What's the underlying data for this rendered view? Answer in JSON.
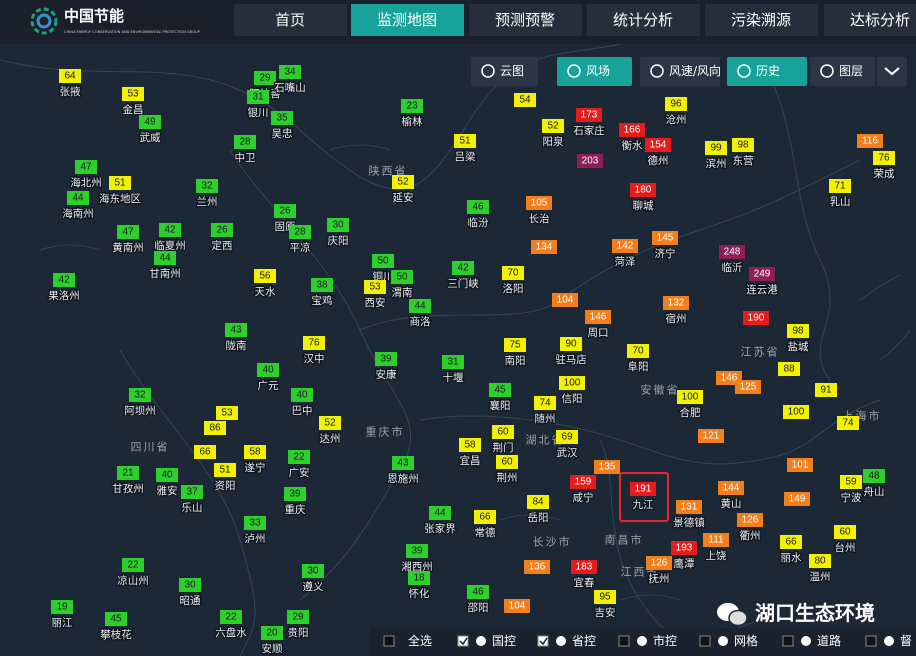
{
  "header": {
    "logo": "中国节能",
    "logo_sub": "CHINA ENERGY CONSERVATION AND ENVIRONMENTAL PROTECTION GROUP",
    "nav": [
      "首页",
      "监测地图",
      "预测预警",
      "统计分析",
      "污染溯源",
      "达标分析"
    ]
  },
  "toolbar": [
    "云图",
    "风场",
    "风速/风向",
    "历史",
    "图层"
  ],
  "map": {
    "region_labels": [
      "陕西省",
      "四川省",
      "重庆市",
      "湖北省",
      "江西省",
      "安徽省",
      "江苏省",
      "上海市",
      "长沙市",
      "南昌市"
    ],
    "stations": [
      {
        "aqi": 64,
        "name": "张掖"
      },
      {
        "aqi": 53,
        "name": "金昌"
      },
      {
        "aqi": 49,
        "name": "武威"
      },
      {
        "aqi": 29,
        "name": "阿拉善"
      },
      {
        "aqi": 34,
        "name": "石嘴山"
      },
      {
        "aqi": 31,
        "name": "银川"
      },
      {
        "aqi": 35,
        "name": "吴忠"
      },
      {
        "aqi": 28,
        "name": "中卫"
      },
      {
        "aqi": 47,
        "name": "海北州"
      },
      {
        "aqi": 51,
        "name": "海东地区"
      },
      {
        "aqi": 44,
        "name": "海南州"
      },
      {
        "aqi": 32,
        "name": "兰州"
      },
      {
        "aqi": 47,
        "name": "黄南州"
      },
      {
        "aqi": 42,
        "name": "临夏州"
      },
      {
        "aqi": 26,
        "name": "定西"
      },
      {
        "aqi": 44,
        "name": "甘南州"
      },
      {
        "aqi": 42,
        "name": "果洛州"
      },
      {
        "aqi": 26,
        "name": "固原"
      },
      {
        "aqi": 28,
        "name": "平凉"
      },
      {
        "aqi": 30,
        "name": "庆阳"
      },
      {
        "aqi": 56,
        "name": "天水"
      },
      {
        "aqi": 38,
        "name": "宝鸡"
      },
      {
        "aqi": 43,
        "name": "陇南"
      },
      {
        "aqi": 76,
        "name": "汉中"
      },
      {
        "aqi": 40,
        "name": "广元"
      },
      {
        "aqi": 40,
        "name": "巴中"
      },
      {
        "aqi": 52,
        "name": "达州"
      },
      {
        "aqi": 32,
        "name": "阿坝州"
      },
      {
        "aqi": 53
      },
      {
        "aqi": 86
      },
      {
        "aqi": 66
      },
      {
        "aqi": 58,
        "name": "遂宁"
      },
      {
        "aqi": 22,
        "name": "广安"
      },
      {
        "aqi": 21,
        "name": "甘孜州"
      },
      {
        "aqi": 40,
        "name": "雅安"
      },
      {
        "aqi": 51,
        "name": "资阳"
      },
      {
        "aqi": 37,
        "name": "乐山"
      },
      {
        "aqi": 39,
        "name": "重庆"
      },
      {
        "aqi": 33,
        "name": "泸州"
      },
      {
        "aqi": 22,
        "name": "凉山州"
      },
      {
        "aqi": 30,
        "name": "昭通"
      },
      {
        "aqi": 19,
        "name": "丽江"
      },
      {
        "aqi": 45,
        "name": "攀枝花"
      },
      {
        "aqi": 22,
        "name": "六盘水"
      },
      {
        "aqi": 29,
        "name": "贵阳"
      },
      {
        "aqi": 20,
        "name": "安顺"
      },
      {
        "aqi": 30,
        "name": "遵义"
      },
      {
        "aqi": 23,
        "name": "榆林"
      },
      {
        "aqi": 51,
        "name": "吕梁"
      },
      {
        "aqi": 52,
        "name": "延安"
      },
      {
        "aqi": 46,
        "name": "临汾"
      },
      {
        "aqi": 50,
        "name": "铜川"
      },
      {
        "aqi": 42,
        "name": "三门峡"
      },
      {
        "aqi": 53,
        "name": "西安"
      },
      {
        "aqi": 50,
        "name": "渭南"
      },
      {
        "aqi": 44,
        "name": "商洛"
      },
      {
        "aqi": 70,
        "name": "洛阳"
      },
      {
        "aqi": 39,
        "name": "安康"
      },
      {
        "aqi": 31,
        "name": "十堰"
      },
      {
        "aqi": 75,
        "name": "南阳"
      },
      {
        "aqi": 90,
        "name": "驻马店"
      },
      {
        "aqi": 45,
        "name": "襄阳"
      },
      {
        "aqi": 74,
        "name": "随州"
      },
      {
        "aqi": 100,
        "name": "信阳"
      },
      {
        "aqi": 58,
        "name": "宜昌"
      },
      {
        "aqi": 60,
        "name": "荆门"
      },
      {
        "aqi": 60,
        "name": "荆州"
      },
      {
        "aqi": 43,
        "name": "恩施州"
      },
      {
        "aqi": 44,
        "name": "张家界"
      },
      {
        "aqi": 66,
        "name": "常德"
      },
      {
        "aqi": 84,
        "name": "岳阳"
      },
      {
        "aqi": 69,
        "name": "武汉"
      },
      {
        "aqi": 39,
        "name": "湘西州"
      },
      {
        "aqi": 18,
        "name": "怀化"
      },
      {
        "aqi": 46,
        "name": "邵阳"
      },
      {
        "aqi": 136
      },
      {
        "aqi": 183,
        "name": "宜春"
      },
      {
        "aqi": 95,
        "name": "吉安"
      },
      {
        "aqi": 104
      },
      {
        "aqi": 54
      },
      {
        "aqi": 52,
        "name": "阳泉"
      },
      {
        "aqi": 173,
        "name": "石家庄"
      },
      {
        "aqi": 96,
        "name": "沧州"
      },
      {
        "aqi": 166,
        "name": "衡水"
      },
      {
        "aqi": 154,
        "name": "德州"
      },
      {
        "aqi": 99,
        "name": "滨州"
      },
      {
        "aqi": 98,
        "name": "东营"
      },
      {
        "aqi": 116
      },
      {
        "aqi": 76,
        "name": "荣成"
      },
      {
        "aqi": 71,
        "name": "乳山"
      },
      {
        "aqi": 203
      },
      {
        "aqi": 180,
        "name": "聊城"
      },
      {
        "aqi": 105,
        "name": "长治"
      },
      {
        "aqi": 134
      },
      {
        "aqi": 142,
        "name": "菏泽"
      },
      {
        "aqi": 145,
        "name": "济宁"
      },
      {
        "aqi": 248,
        "name": "临沂"
      },
      {
        "aqi": 249,
        "name": "连云港"
      },
      {
        "aqi": 104
      },
      {
        "aqi": 146,
        "name": "周口"
      },
      {
        "aqi": 132,
        "name": "宿州"
      },
      {
        "aqi": 70,
        "name": "阜阳"
      },
      {
        "aqi": 190
      },
      {
        "aqi": 98,
        "name": "盐城"
      },
      {
        "aqi": 88
      },
      {
        "aqi": 91
      },
      {
        "aqi": 146
      },
      {
        "aqi": 125
      },
      {
        "aqi": 100,
        "name": "合肥"
      },
      {
        "aqi": 100
      },
      {
        "aqi": 74
      },
      {
        "aqi": 121
      },
      {
        "aqi": 135
      },
      {
        "aqi": 159,
        "name": "咸宁"
      },
      {
        "aqi": 191,
        "name": "九江"
      },
      {
        "aqi": 131,
        "name": "景德镇"
      },
      {
        "aqi": 144,
        "name": "黄山"
      },
      {
        "aqi": 149
      },
      {
        "aqi": 126,
        "name": "衢州"
      },
      {
        "aqi": 193,
        "name": "鹰潭"
      },
      {
        "aqi": 126,
        "name": "抚州"
      },
      {
        "aqi": 111,
        "name": "上饶"
      },
      {
        "aqi": 66,
        "name": "丽水"
      },
      {
        "aqi": 60,
        "name": "台州"
      },
      {
        "aqi": 80,
        "name": "温州"
      },
      {
        "aqi": 59,
        "name": "宁波"
      },
      {
        "aqi": 48,
        "name": "舟山"
      },
      {
        "aqi": 101
      }
    ]
  },
  "footer": {
    "filters": [
      "全选",
      "国控",
      "省控",
      "市控",
      "网格",
      "道路",
      "督"
    ],
    "watermark": "湖口生态环境"
  }
}
